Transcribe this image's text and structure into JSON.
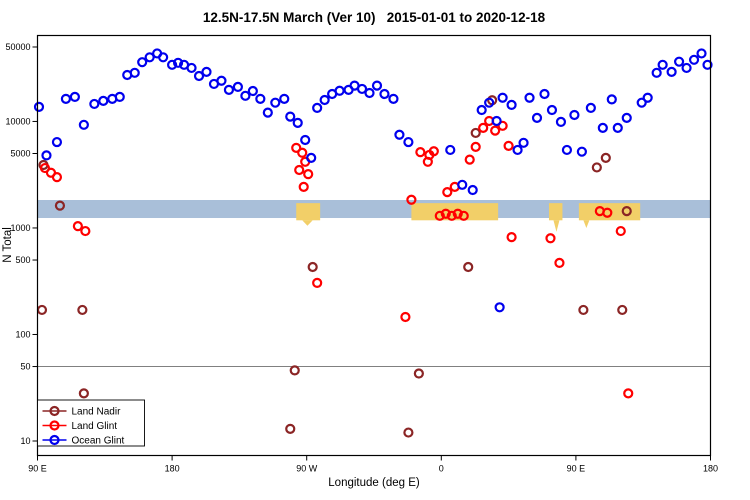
{
  "chart_data": {
    "type": "scatter",
    "title": "12.5N-17.5N March (Ver 10)   2015-01-01 to 2020-12-18",
    "xlabel": "Longitude (deg E)",
    "ylabel": "N Total",
    "x_axis": {
      "unit_span": 450,
      "ticks": [
        {
          "pos": 0,
          "label": "90 E"
        },
        {
          "pos": 90,
          "label": "180"
        },
        {
          "pos": 180,
          "label": "90 W"
        },
        {
          "pos": 270,
          "label": "0"
        },
        {
          "pos": 360,
          "label": "90 E"
        },
        {
          "pos": 450,
          "label": "180"
        }
      ]
    },
    "y_axis": {
      "scale": "log10",
      "min": 10,
      "max": 50000,
      "ticks": [
        10,
        50,
        100,
        500,
        1000,
        5000,
        10000,
        50000
      ]
    },
    "reference_line": {
      "y": 50,
      "color": "#808080"
    },
    "bands": {
      "blue_band": {
        "x_range": [
          0,
          450
        ],
        "y_range": [
          1240,
          1830
        ],
        "color": "#a9bfd9"
      },
      "yellow_patches": {
        "color": "#f2cf68",
        "y_range": [
          1180,
          1710
        ],
        "x_ranges": [
          [
            173,
            189
          ],
          [
            250,
            308
          ],
          [
            342,
            351
          ],
          [
            362,
            403
          ]
        ],
        "wedges": [
          {
            "x_range": [
              177,
              184
            ],
            "apex_value": 1050
          },
          {
            "x_range": [
              345,
              349
            ],
            "apex_value": 920
          },
          {
            "x_range": [
              365,
              369
            ],
            "apex_value": 1000
          }
        ]
      }
    },
    "legend": {
      "position": "bottom-left"
    },
    "series": [
      {
        "name": "Land Nadir",
        "color": "#8b2525",
        "points": [
          [
            3,
            170
          ],
          [
            30,
            170
          ],
          [
            4,
            3900
          ],
          [
            15,
            1620
          ],
          [
            31,
            28
          ],
          [
            169,
            13
          ],
          [
            172,
            46
          ],
          [
            184,
            430
          ],
          [
            248,
            12
          ],
          [
            255,
            43
          ],
          [
            288,
            430
          ],
          [
            293,
            7800
          ],
          [
            304,
            15800
          ],
          [
            365,
            170
          ],
          [
            391,
            170
          ],
          [
            374,
            3700
          ],
          [
            380,
            4550
          ],
          [
            394,
            1440
          ]
        ]
      },
      {
        "name": "Land Glint",
        "color": "#ff0000",
        "points": [
          [
            5,
            3650
          ],
          [
            9,
            3300
          ],
          [
            13,
            3000
          ],
          [
            27,
            1040
          ],
          [
            32,
            935
          ],
          [
            173,
            5650
          ],
          [
            177,
            5080
          ],
          [
            179,
            4180
          ],
          [
            175,
            3500
          ],
          [
            181,
            3200
          ],
          [
            178,
            2430
          ],
          [
            187,
            305
          ],
          [
            246,
            146
          ],
          [
            250,
            1840
          ],
          [
            256,
            5150
          ],
          [
            262,
            4850
          ],
          [
            265,
            5250
          ],
          [
            261,
            4180
          ],
          [
            269,
            1300
          ],
          [
            273,
            1360
          ],
          [
            277,
            1300
          ],
          [
            281,
            1360
          ],
          [
            285,
            1300
          ],
          [
            274,
            2170
          ],
          [
            279,
            2430
          ],
          [
            289,
            4380
          ],
          [
            293,
            5770
          ],
          [
            298,
            8700
          ],
          [
            302,
            10100
          ],
          [
            306,
            8200
          ],
          [
            311,
            9100
          ],
          [
            315,
            5900
          ],
          [
            317,
            820
          ],
          [
            343,
            800
          ],
          [
            349,
            470
          ],
          [
            376,
            1440
          ],
          [
            381,
            1390
          ],
          [
            390,
            935
          ],
          [
            395,
            28
          ]
        ]
      },
      {
        "name": "Ocean Glint",
        "color": "#0000ee",
        "points": [
          [
            1,
            13700
          ],
          [
            6,
            4800
          ],
          [
            13,
            6400
          ],
          [
            19,
            16300
          ],
          [
            25,
            17000
          ],
          [
            31,
            9300
          ],
          [
            38,
            14600
          ],
          [
            44,
            15600
          ],
          [
            50,
            16300
          ],
          [
            55,
            17000
          ],
          [
            60,
            27300
          ],
          [
            65,
            28600
          ],
          [
            70,
            36000
          ],
          [
            75,
            40000
          ],
          [
            80,
            43500
          ],
          [
            84,
            40000
          ],
          [
            90,
            34000
          ],
          [
            94,
            35500
          ],
          [
            98,
            34000
          ],
          [
            103,
            31800
          ],
          [
            108,
            26700
          ],
          [
            113,
            29200
          ],
          [
            118,
            22500
          ],
          [
            123,
            24100
          ],
          [
            128,
            19800
          ],
          [
            134,
            21100
          ],
          [
            139,
            17400
          ],
          [
            144,
            19300
          ],
          [
            149,
            16300
          ],
          [
            154,
            12100
          ],
          [
            159,
            15000
          ],
          [
            165,
            16300
          ],
          [
            169,
            11100
          ],
          [
            174,
            9700
          ],
          [
            179,
            6700
          ],
          [
            183,
            4550
          ],
          [
            187,
            13400
          ],
          [
            192,
            15900
          ],
          [
            197,
            18100
          ],
          [
            202,
            19400
          ],
          [
            208,
            19800
          ],
          [
            212,
            21700
          ],
          [
            217,
            20200
          ],
          [
            222,
            18500
          ],
          [
            227,
            21700
          ],
          [
            232,
            18100
          ],
          [
            238,
            16300
          ],
          [
            242,
            7500
          ],
          [
            248,
            6400
          ],
          [
            276,
            5400
          ],
          [
            284,
            2540
          ],
          [
            291,
            2270
          ],
          [
            297,
            12800
          ],
          [
            302,
            15000
          ],
          [
            307,
            10100
          ],
          [
            311,
            16700
          ],
          [
            317,
            14300
          ],
          [
            321,
            5400
          ],
          [
            325,
            6300
          ],
          [
            329,
            16700
          ],
          [
            309,
            180
          ],
          [
            334,
            10800
          ],
          [
            339,
            18100
          ],
          [
            344,
            12800
          ],
          [
            350,
            9900
          ],
          [
            354,
            5400
          ],
          [
            359,
            11500
          ],
          [
            364,
            5200
          ],
          [
            370,
            13400
          ],
          [
            378,
            8700
          ],
          [
            384,
            16100
          ],
          [
            388,
            8700
          ],
          [
            394,
            10800
          ],
          [
            404,
            15000
          ],
          [
            408,
            16700
          ],
          [
            414,
            28600
          ],
          [
            418,
            34000
          ],
          [
            424,
            29200
          ],
          [
            429,
            36400
          ],
          [
            434,
            31800
          ],
          [
            439,
            37900
          ],
          [
            444,
            43500
          ],
          [
            448,
            34000
          ]
        ]
      }
    ]
  }
}
